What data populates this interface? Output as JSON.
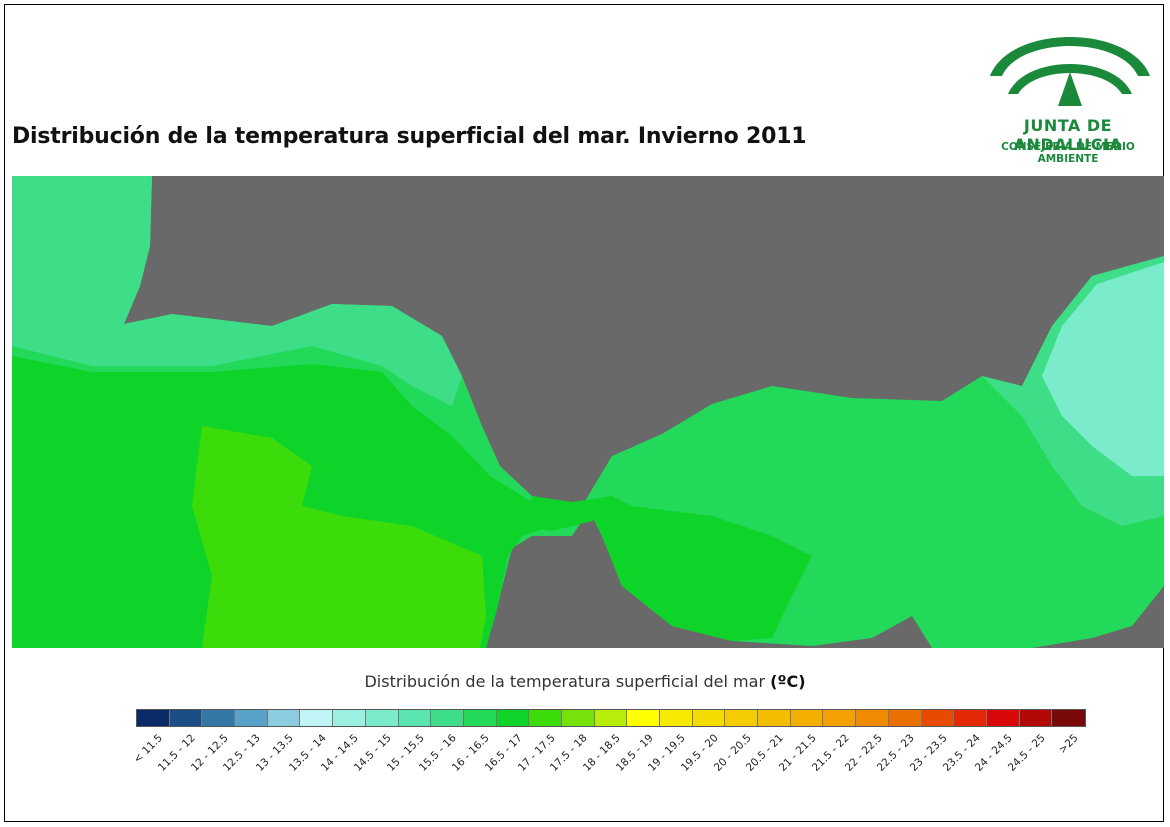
{
  "title": "Distribución de la temperatura superficial del mar. Invierno 2011",
  "logo": {
    "name": "JUNTA DE ANDALUCIA",
    "subtitle": "CONSEJERÍA DE MEDIO AMBIENTE",
    "color": "#1a8a3a"
  },
  "map": {
    "land_color": "#696969",
    "region": "Strait of Gibraltar / Alboran Sea"
  },
  "legend": {
    "title": "Distribución de la temperatura superficial del mar",
    "unit": "(ºC)",
    "classes": [
      {
        "label": "< 11.5",
        "color": "#0a2a6a"
      },
      {
        "label": "11.5 - 12",
        "color": "#1b4d86"
      },
      {
        "label": "12 - 12.5",
        "color": "#3478a8"
      },
      {
        "label": "12.5 - 13",
        "color": "#58a2c8"
      },
      {
        "label": "13 - 13.5",
        "color": "#8ccce0"
      },
      {
        "label": "13.5 - 14",
        "color": "#c0f4f6"
      },
      {
        "label": "14 - 14.5",
        "color": "#9cf0e2"
      },
      {
        "label": "14.5 - 15",
        "color": "#7aeccc"
      },
      {
        "label": "15 - 15.5",
        "color": "#5ae4b0"
      },
      {
        "label": "15.5 - 16",
        "color": "#3ede88"
      },
      {
        "label": "16 - 16.5",
        "color": "#22d95a"
      },
      {
        "label": "16.5 - 17",
        "color": "#0ed42a"
      },
      {
        "label": "17 - 17.5",
        "color": "#3cdc0a"
      },
      {
        "label": "17.5 - 18",
        "color": "#76e20a"
      },
      {
        "label": "18 - 18.5",
        "color": "#b6ee0a"
      },
      {
        "label": "18.5 - 19",
        "color": "#ffff00"
      },
      {
        "label": "19 - 19.5",
        "color": "#f6ea00"
      },
      {
        "label": "19.5 - 20",
        "color": "#f4dc00"
      },
      {
        "label": "20 - 20.5",
        "color": "#f4cc00"
      },
      {
        "label": "20.5 - 21",
        "color": "#f4be00"
      },
      {
        "label": "21 - 21.5",
        "color": "#f4b000"
      },
      {
        "label": "21.5 - 22",
        "color": "#f4a000"
      },
      {
        "label": "22 - 22.5",
        "color": "#f08a00"
      },
      {
        "label": "22.5 - 23",
        "color": "#ec7000"
      },
      {
        "label": "23 - 23.5",
        "color": "#e84a00"
      },
      {
        "label": "23.5 - 24",
        "color": "#e22a08"
      },
      {
        "label": "24 - 24.5",
        "color": "#da0808"
      },
      {
        "label": "24.5 - 25",
        "color": "#b40808"
      },
      {
        "label": ">25",
        "color": "#7a0a0a"
      }
    ]
  }
}
